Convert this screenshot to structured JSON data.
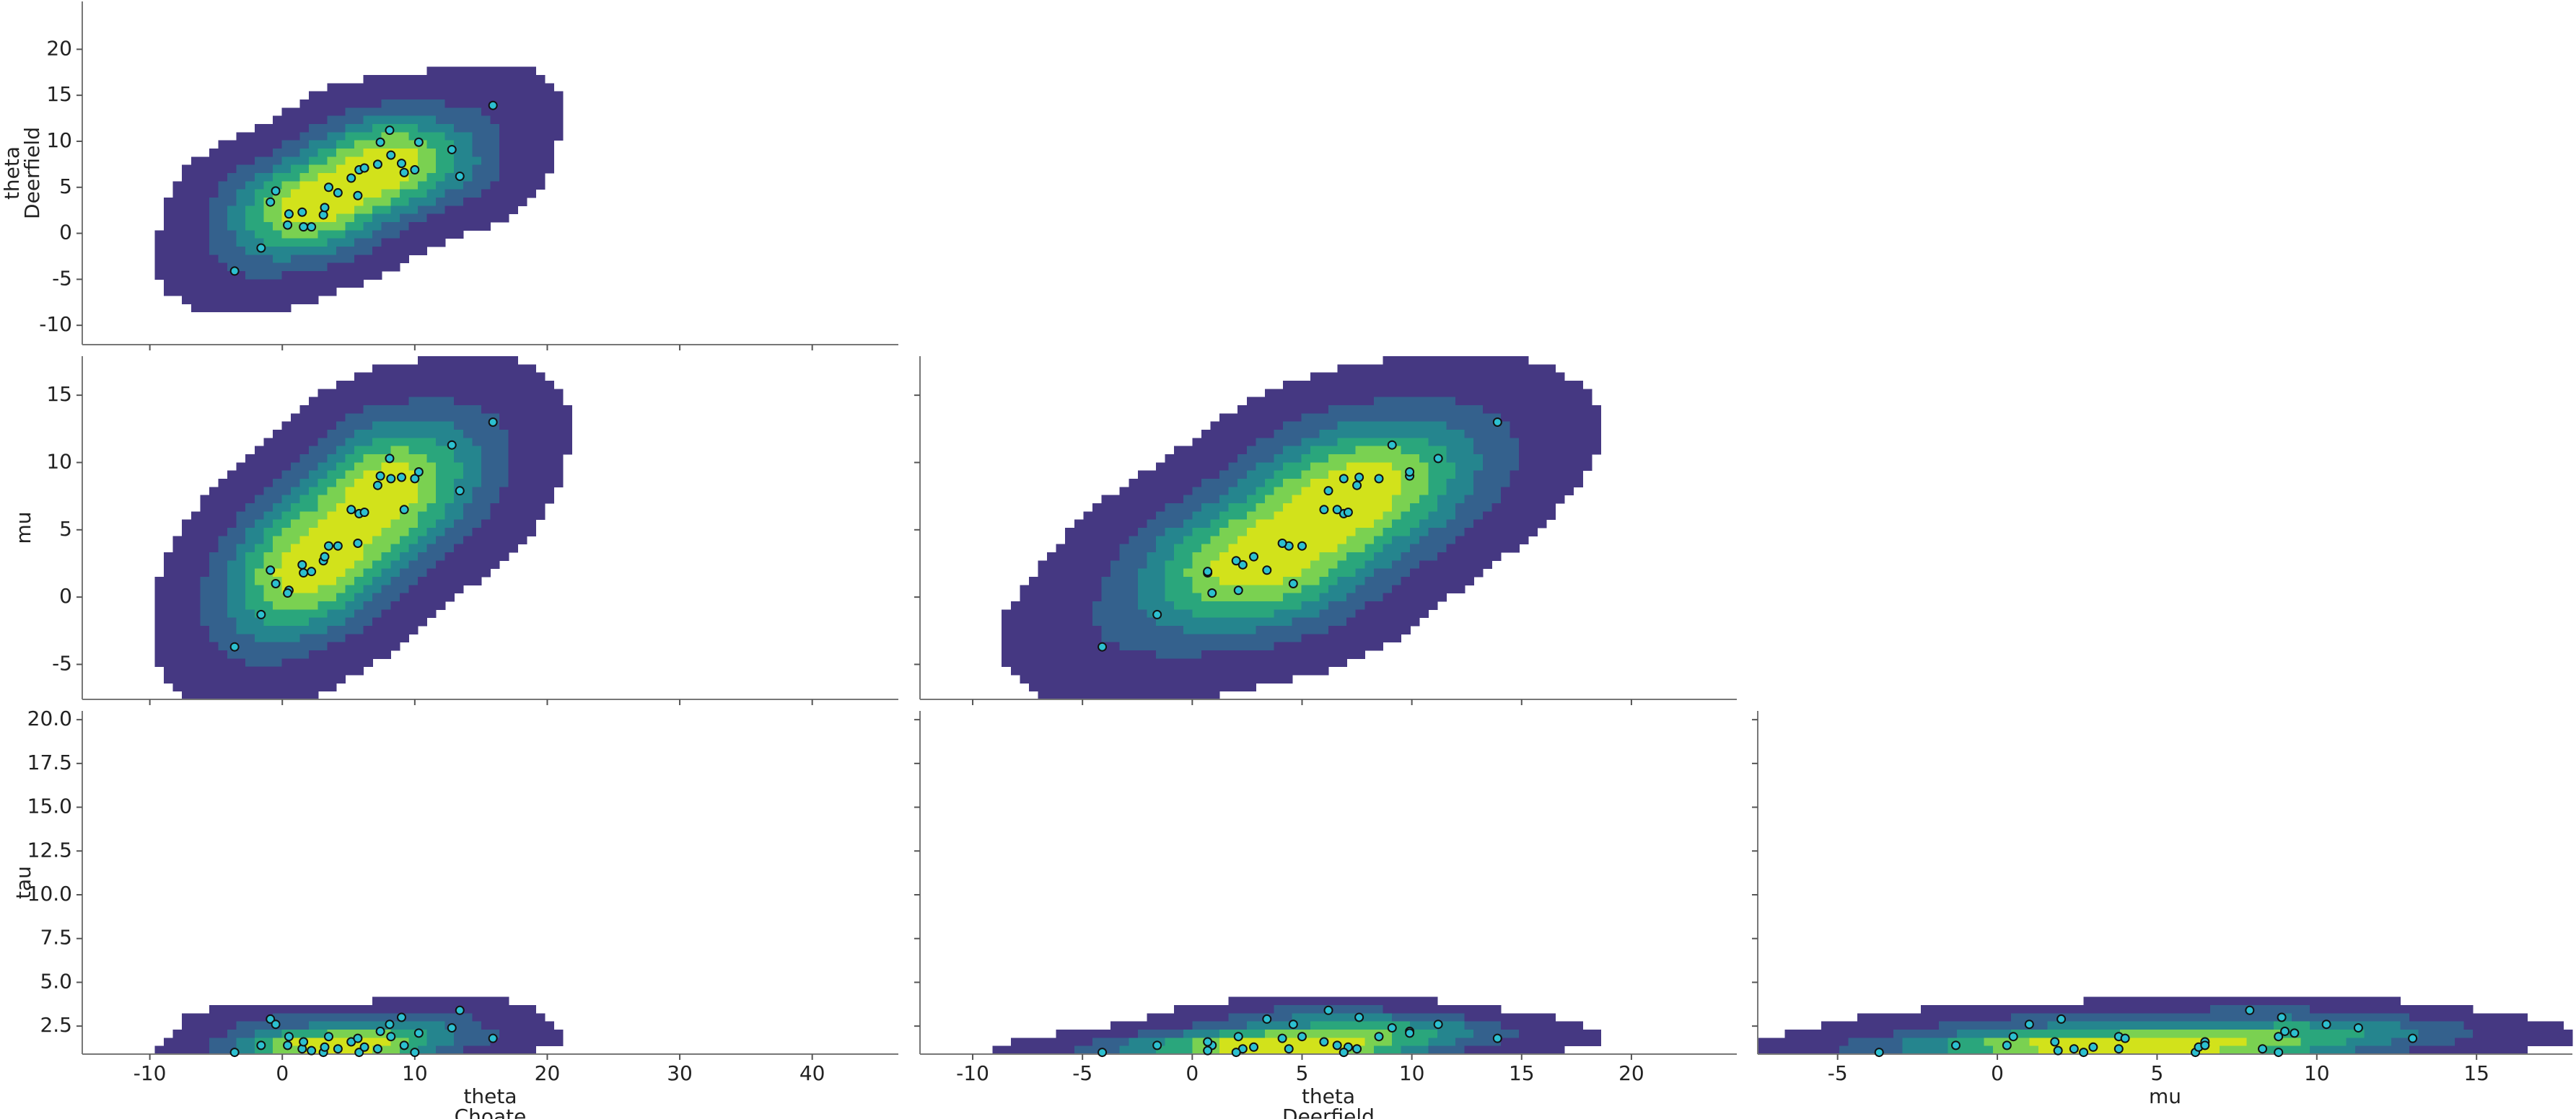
{
  "chart_data": [
    {
      "type": "kde",
      "ylabel": [
        "theta",
        "Deerfield"
      ],
      "xlim": [
        -15.1,
        46.5
      ],
      "xticks": [
        -10,
        0,
        10,
        20,
        30,
        40
      ],
      "ylim": [
        -12.1,
        25.2
      ],
      "yticks": [
        -10,
        -5,
        0,
        5,
        10,
        15,
        20
      ],
      "x": [
        15.9,
        -3.6,
        -1.6,
        -0.9,
        -0.5,
        0.5,
        0.4,
        1.5,
        1.6,
        2.2,
        3.1,
        3.2,
        3.5,
        4.2,
        5.2,
        5.8,
        6.2,
        5.7,
        7.2,
        7.4,
        8.1,
        8.2,
        9.0,
        9.2,
        10.3,
        10.0,
        12.8,
        13.4
      ],
      "y": [
        13.9,
        -4.1,
        -1.6,
        3.4,
        4.6,
        2.1,
        0.9,
        2.3,
        0.7,
        0.7,
        2.0,
        2.8,
        5.0,
        4.4,
        6.0,
        6.9,
        7.1,
        4.1,
        7.5,
        9.9,
        11.2,
        8.5,
        7.6,
        6.6,
        9.9,
        6.9,
        9.1,
        6.2
      ],
      "color": "#2cc0d0",
      "colors": [
        "#453882",
        "#34618d",
        "#25858e",
        "#2aa67c",
        "#7ad151",
        "#d2e21b"
      ]
    },
    {
      "type": "kde",
      "ylabel": [
        "mu"
      ],
      "xlim": [
        -15.1,
        46.5
      ],
      "xticks": [
        -10,
        0,
        10,
        20,
        30,
        40
      ],
      "ylim": [
        -7.6,
        17.9
      ],
      "yticks": [
        -5,
        0,
        5,
        10,
        15
      ],
      "x": [
        15.9,
        -3.6,
        -1.6,
        -0.9,
        -0.5,
        0.5,
        0.4,
        1.5,
        1.6,
        2.2,
        3.1,
        3.2,
        3.5,
        4.2,
        5.2,
        5.8,
        6.2,
        5.7,
        7.2,
        7.4,
        8.1,
        8.2,
        9.0,
        9.2,
        10.3,
        10.0,
        12.8,
        13.4
      ],
      "y": [
        13.0,
        -3.7,
        -1.3,
        2.0,
        1.0,
        0.5,
        0.3,
        2.4,
        1.8,
        1.9,
        2.7,
        3.0,
        3.8,
        3.8,
        6.5,
        6.2,
        6.3,
        4.0,
        8.3,
        9.0,
        10.3,
        8.8,
        8.9,
        6.5,
        9.3,
        8.8,
        11.3,
        7.9
      ],
      "color": "#2cc0d0",
      "colors": [
        "#453882",
        "#34618d",
        "#25858e",
        "#2aa67c",
        "#7ad151",
        "#d2e21b"
      ]
    },
    {
      "type": "kde",
      "xlim": [
        -12.4,
        24.8
      ],
      "xticks": [
        -10,
        -5,
        0,
        5,
        10,
        15,
        20
      ],
      "ylim": [
        -7.6,
        17.9
      ],
      "yticks": [
        -5,
        0,
        5,
        10,
        15
      ],
      "x": [
        13.9,
        -4.1,
        -1.6,
        3.4,
        4.6,
        2.1,
        0.9,
        2.3,
        0.7,
        0.7,
        2.0,
        2.8,
        5.0,
        4.4,
        6.0,
        6.9,
        7.1,
        4.1,
        7.5,
        9.9,
        11.2,
        8.5,
        7.6,
        6.6,
        9.9,
        6.9,
        9.1,
        6.2
      ],
      "y": [
        13.0,
        -3.7,
        -1.3,
        2.0,
        1.0,
        0.5,
        0.3,
        2.4,
        1.8,
        1.9,
        2.7,
        3.0,
        3.8,
        3.8,
        6.5,
        6.2,
        6.3,
        4.0,
        8.3,
        9.0,
        10.3,
        8.8,
        8.9,
        6.5,
        9.3,
        8.8,
        11.3,
        7.9
      ],
      "color": "#2cc0d0",
      "colors": [
        "#453882",
        "#34618d",
        "#25858e",
        "#2aa67c",
        "#7ad151",
        "#d2e21b"
      ]
    },
    {
      "type": "kde",
      "ylabel": [
        "tau"
      ],
      "xlabel": [
        "theta",
        "Choate"
      ],
      "xlim": [
        -15.1,
        46.5
      ],
      "xticks": [
        -10,
        0,
        10,
        20,
        30,
        40
      ],
      "ylim": [
        0.9,
        20.5
      ],
      "yticks": [
        2.5,
        {
          "value": 5,
          "label": "5.0"
        },
        7.5,
        {
          "value": 10,
          "label": "10.0"
        },
        12.5,
        {
          "value": 15,
          "label": "15.0"
        },
        17.5,
        {
          "value": 20,
          "label": "20.0"
        }
      ],
      "x": [
        15.9,
        -3.6,
        -1.6,
        -0.9,
        -0.5,
        0.5,
        0.4,
        1.5,
        1.6,
        2.2,
        3.1,
        3.2,
        3.5,
        4.2,
        5.2,
        5.8,
        6.2,
        5.7,
        7.2,
        7.4,
        8.1,
        8.2,
        9.0,
        9.2,
        10.3,
        10.0,
        12.8,
        13.4
      ],
      "y": [
        1.8,
        1.0,
        1.4,
        2.9,
        2.6,
        1.9,
        1.4,
        1.2,
        1.6,
        1.1,
        1.0,
        1.3,
        1.9,
        1.2,
        1.6,
        1.0,
        1.3,
        1.8,
        1.2,
        2.2,
        2.6,
        1.9,
        3.0,
        1.4,
        2.1,
        1.0,
        2.4,
        3.4
      ],
      "color": "#2cc0d0",
      "colors": [
        "#453882",
        "#34618d",
        "#25858e",
        "#2aa67c",
        "#7ad151",
        "#d2e21b"
      ]
    },
    {
      "type": "kde",
      "xlabel": [
        "theta",
        "Deerfield"
      ],
      "xlim": [
        -12.4,
        24.8
      ],
      "xticks": [
        -10,
        -5,
        0,
        5,
        10,
        15,
        20
      ],
      "ylim": [
        0.9,
        20.5
      ],
      "yticks": [
        2.5,
        {
          "value": 5,
          "label": "5.0"
        },
        7.5,
        {
          "value": 10,
          "label": "10.0"
        },
        12.5,
        {
          "value": 15,
          "label": "15.0"
        },
        17.5,
        {
          "value": 20,
          "label": "20.0"
        }
      ],
      "x": [
        13.9,
        -4.1,
        -1.6,
        3.4,
        4.6,
        2.1,
        0.9,
        2.3,
        0.7,
        0.7,
        2.0,
        2.8,
        5.0,
        4.4,
        6.0,
        6.9,
        7.1,
        4.1,
        7.5,
        9.9,
        11.2,
        8.5,
        7.6,
        6.6,
        9.9,
        6.9,
        9.1,
        6.2
      ],
      "y": [
        1.8,
        1.0,
        1.4,
        2.9,
        2.6,
        1.9,
        1.4,
        1.2,
        1.6,
        1.1,
        1.0,
        1.3,
        1.9,
        1.2,
        1.6,
        1.0,
        1.3,
        1.8,
        1.2,
        2.2,
        2.6,
        1.9,
        3.0,
        1.4,
        2.1,
        1.0,
        2.4,
        3.4
      ],
      "color": "#2cc0d0",
      "colors": [
        "#453882",
        "#34618d",
        "#25858e",
        "#2aa67c",
        "#7ad151",
        "#d2e21b"
      ]
    },
    {
      "type": "kde",
      "xlabel": [
        "mu"
      ],
      "xlim": [
        -7.5,
        18.0
      ],
      "xticks": [
        -5,
        0,
        5,
        10,
        15
      ],
      "ylim": [
        0.9,
        20.5
      ],
      "yticks": [
        2.5,
        {
          "value": 5,
          "label": "5.0"
        },
        7.5,
        {
          "value": 10,
          "label": "10.0"
        },
        12.5,
        {
          "value": 15,
          "label": "15.0"
        },
        17.5,
        {
          "value": 20,
          "label": "20.0"
        }
      ],
      "x": [
        13.0,
        -3.7,
        -1.3,
        2.0,
        1.0,
        0.5,
        0.3,
        2.4,
        1.8,
        1.9,
        2.7,
        3.0,
        3.8,
        3.8,
        6.5,
        6.2,
        6.3,
        4.0,
        8.3,
        9.0,
        10.3,
        8.8,
        8.9,
        6.5,
        9.3,
        8.8,
        11.3,
        7.9
      ],
      "y": [
        1.8,
        1.0,
        1.4,
        2.9,
        2.6,
        1.9,
        1.4,
        1.2,
        1.6,
        1.1,
        1.0,
        1.3,
        1.9,
        1.2,
        1.6,
        1.0,
        1.3,
        1.8,
        1.2,
        2.2,
        2.6,
        1.9,
        3.0,
        1.4,
        2.1,
        1.0,
        2.4,
        3.4
      ],
      "color": "#2cc0d0",
      "colors": [
        "#453882",
        "#34618d",
        "#25858e",
        "#2aa67c",
        "#7ad151",
        "#d2e21b"
      ]
    }
  ]
}
